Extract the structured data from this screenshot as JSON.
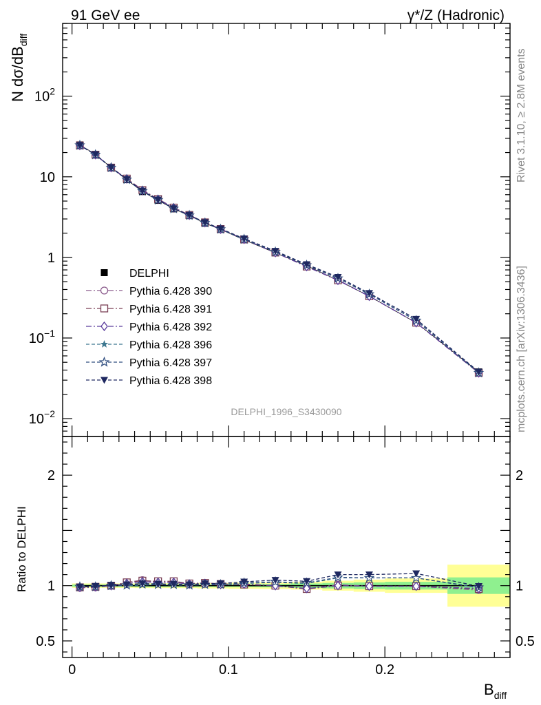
{
  "header": {
    "left": "91 GeV ee",
    "right": "γ*/Z (Hadronic)"
  },
  "side_text": {
    "rivet": "Rivet 3.1.10, ≥ 2.8M events",
    "mcplots": "mcplots.cern.ch [arXiv:1306.3436]"
  },
  "analysis_label": "DELPHI_1996_S3430090",
  "colors": {
    "band_inner": "#8ff08f",
    "band_outer": "#ffff96",
    "watermark": "#888888"
  },
  "chart_data": [
    {
      "type": "line",
      "panel": "main",
      "ylabel_main": "N dσ/dB",
      "ylabel_sub": "diff",
      "xlabel": "",
      "y_scale": "log",
      "ylim": [
        0.006,
        800
      ],
      "xlim": [
        -0.006,
        0.28
      ],
      "yticks": [
        {
          "value": 0.01,
          "base": "10",
          "exp": "−2"
        },
        {
          "value": 0.1,
          "base": "10",
          "exp": "−1"
        },
        {
          "value": 1,
          "base": "1",
          "exp": ""
        },
        {
          "value": 10,
          "base": "10",
          "exp": ""
        },
        {
          "value": 100,
          "base": "10",
          "exp": "2"
        }
      ],
      "x": [
        0.005,
        0.015,
        0.025,
        0.035,
        0.045,
        0.055,
        0.065,
        0.075,
        0.085,
        0.095,
        0.11,
        0.13,
        0.15,
        0.17,
        0.19,
        0.22,
        0.26
      ],
      "series": [
        {
          "name": "DELPHI",
          "color": "#000000",
          "marker": "square-filled",
          "dash": "none",
          "values": [
            24.9,
            19.0,
            13.0,
            9.2,
            6.55,
            5.1,
            4.0,
            3.3,
            2.65,
            2.22,
            1.65,
            1.14,
            0.79,
            0.52,
            0.33,
            0.155,
            0.038
          ]
        },
        {
          "name": "Pythia 6.428 390",
          "color": "#8a5a8c",
          "marker": "circle-open",
          "dash": "8,3,2,3",
          "values": [
            24.4,
            18.7,
            13.0,
            9.45,
            6.85,
            5.25,
            4.12,
            3.35,
            2.72,
            2.25,
            1.68,
            1.15,
            0.77,
            0.525,
            0.33,
            0.155,
            0.037
          ]
        },
        {
          "name": "Pythia 6.428 391",
          "color": "#7a3f55",
          "marker": "square-open",
          "dash": "8,3,2,3",
          "values": [
            24.5,
            18.8,
            13.0,
            9.5,
            6.85,
            5.3,
            4.15,
            3.36,
            2.72,
            2.25,
            1.67,
            1.15,
            0.77,
            0.52,
            0.33,
            0.155,
            0.037
          ]
        },
        {
          "name": "Pythia 6.428 392",
          "color": "#5a3c9c",
          "marker": "diamond-open",
          "dash": "8,3,2,3",
          "values": [
            24.5,
            18.8,
            13.0,
            9.4,
            6.75,
            5.25,
            4.12,
            3.34,
            2.7,
            2.24,
            1.68,
            1.15,
            0.77,
            0.52,
            0.33,
            0.155,
            0.037
          ]
        },
        {
          "name": "Pythia 6.428 396",
          "color": "#3e7890",
          "marker": "star-filled",
          "dash": "5,3",
          "values": [
            24.6,
            18.8,
            13.0,
            9.2,
            6.6,
            5.15,
            4.02,
            3.32,
            2.68,
            2.24,
            1.68,
            1.17,
            0.8,
            0.55,
            0.35,
            0.165,
            0.037
          ]
        },
        {
          "name": "Pythia 6.428 397",
          "color": "#2e4c7e",
          "marker": "star-open",
          "dash": "5,3",
          "values": [
            24.6,
            18.8,
            13.0,
            9.25,
            6.65,
            5.15,
            4.03,
            3.32,
            2.68,
            2.24,
            1.68,
            1.17,
            0.8,
            0.55,
            0.35,
            0.165,
            0.037
          ]
        },
        {
          "name": "Pythia 6.428 398",
          "color": "#1e2860",
          "marker": "triangle-down-filled",
          "dash": "5,3",
          "values": [
            24.7,
            18.9,
            13.1,
            9.3,
            6.7,
            5.2,
            4.05,
            3.35,
            2.72,
            2.27,
            1.71,
            1.2,
            0.82,
            0.57,
            0.36,
            0.172,
            0.038
          ]
        }
      ]
    },
    {
      "type": "line",
      "panel": "ratio",
      "ylabel": "Ratio to DELPHI",
      "xlabel_main": "B",
      "xlabel_sub": "diff",
      "ylim": [
        0.35,
        2.35
      ],
      "xlim": [
        -0.006,
        0.28
      ],
      "yticks": [
        0.5,
        1,
        2
      ],
      "xticks": [
        {
          "value": 0,
          "label": "0"
        },
        {
          "value": 0.1,
          "label": "0.1"
        },
        {
          "value": 0.2,
          "label": "0.2"
        }
      ],
      "bins": [
        {
          "lo": 0.0,
          "hi": 0.01,
          "inner": 0.01,
          "outer": 0.02
        },
        {
          "lo": 0.01,
          "hi": 0.02,
          "inner": 0.01,
          "outer": 0.02
        },
        {
          "lo": 0.02,
          "hi": 0.03,
          "inner": 0.01,
          "outer": 0.02
        },
        {
          "lo": 0.03,
          "hi": 0.04,
          "inner": 0.01,
          "outer": 0.02
        },
        {
          "lo": 0.04,
          "hi": 0.05,
          "inner": 0.012,
          "outer": 0.022
        },
        {
          "lo": 0.05,
          "hi": 0.06,
          "inner": 0.012,
          "outer": 0.022
        },
        {
          "lo": 0.06,
          "hi": 0.07,
          "inner": 0.012,
          "outer": 0.022
        },
        {
          "lo": 0.07,
          "hi": 0.08,
          "inner": 0.012,
          "outer": 0.022
        },
        {
          "lo": 0.08,
          "hi": 0.09,
          "inner": 0.012,
          "outer": 0.025
        },
        {
          "lo": 0.09,
          "hi": 0.1,
          "inner": 0.012,
          "outer": 0.025
        },
        {
          "lo": 0.1,
          "hi": 0.12,
          "inner": 0.012,
          "outer": 0.028
        },
        {
          "lo": 0.12,
          "hi": 0.14,
          "inner": 0.015,
          "outer": 0.03
        },
        {
          "lo": 0.14,
          "hi": 0.16,
          "inner": 0.02,
          "outer": 0.035
        },
        {
          "lo": 0.16,
          "hi": 0.18,
          "inner": 0.025,
          "outer": 0.045
        },
        {
          "lo": 0.18,
          "hi": 0.2,
          "inner": 0.03,
          "outer": 0.055
        },
        {
          "lo": 0.2,
          "hi": 0.24,
          "inner": 0.035,
          "outer": 0.065
        },
        {
          "lo": 0.24,
          "hi": 0.28,
          "inner": 0.075,
          "outer": 0.19
        }
      ],
      "x": [
        0.005,
        0.015,
        0.025,
        0.035,
        0.045,
        0.055,
        0.065,
        0.075,
        0.085,
        0.095,
        0.11,
        0.13,
        0.15,
        0.17,
        0.19,
        0.22,
        0.26
      ],
      "series": [
        {
          "name": "DELPHI",
          "color": "#000000",
          "marker": "none",
          "dash": "none",
          "values": [
            1,
            1,
            1,
            1,
            1,
            1,
            1,
            1,
            1,
            1,
            1,
            1,
            1,
            1,
            1,
            1,
            1
          ]
        },
        {
          "name": "Pythia 6.428 390",
          "color": "#8a5a8c",
          "marker": "circle-open",
          "dash": "8,3,2,3",
          "values": [
            0.98,
            0.985,
            1.0,
            1.03,
            1.05,
            1.03,
            1.03,
            1.015,
            1.025,
            1.015,
            1.015,
            1.0,
            0.97,
            1.01,
            0.995,
            0.995,
            0.96
          ]
        },
        {
          "name": "Pythia 6.428 391",
          "color": "#7a3f55",
          "marker": "square-open",
          "dash": "8,3,2,3",
          "values": [
            0.985,
            0.99,
            1.0,
            1.03,
            1.045,
            1.04,
            1.04,
            1.02,
            1.025,
            1.015,
            1.01,
            1.0,
            0.97,
            1.0,
            0.995,
            0.995,
            0.97
          ]
        },
        {
          "name": "Pythia 6.428 392",
          "color": "#5a3c9c",
          "marker": "diamond-open",
          "dash": "8,3,2,3",
          "values": [
            0.985,
            0.99,
            1.0,
            1.02,
            1.035,
            1.03,
            1.03,
            1.015,
            1.02,
            1.01,
            1.015,
            1.0,
            0.975,
            1.0,
            0.995,
            0.995,
            0.975
          ]
        },
        {
          "name": "Pythia 6.428 396",
          "color": "#3e7890",
          "marker": "star-filled",
          "dash": "5,3",
          "values": [
            0.99,
            0.99,
            1.0,
            1.0,
            1.005,
            1.01,
            1.005,
            1.005,
            1.01,
            1.01,
            1.02,
            1.03,
            1.02,
            1.07,
            1.07,
            1.07,
            0.98
          ]
        },
        {
          "name": "Pythia 6.428 397",
          "color": "#2e4c7e",
          "marker": "star-open",
          "dash": "5,3",
          "values": [
            0.99,
            0.99,
            1.0,
            1.005,
            1.015,
            1.01,
            1.01,
            1.005,
            1.01,
            1.01,
            1.025,
            1.035,
            1.025,
            1.075,
            1.07,
            1.07,
            0.985
          ]
        },
        {
          "name": "Pythia 6.428 398",
          "color": "#1e2860",
          "marker": "triangle-down-filled",
          "dash": "5,3",
          "values": [
            0.99,
            0.995,
            1.005,
            1.01,
            1.02,
            1.015,
            1.015,
            1.01,
            1.02,
            1.02,
            1.035,
            1.05,
            1.04,
            1.1,
            1.1,
            1.11,
            0.995
          ]
        }
      ]
    }
  ]
}
